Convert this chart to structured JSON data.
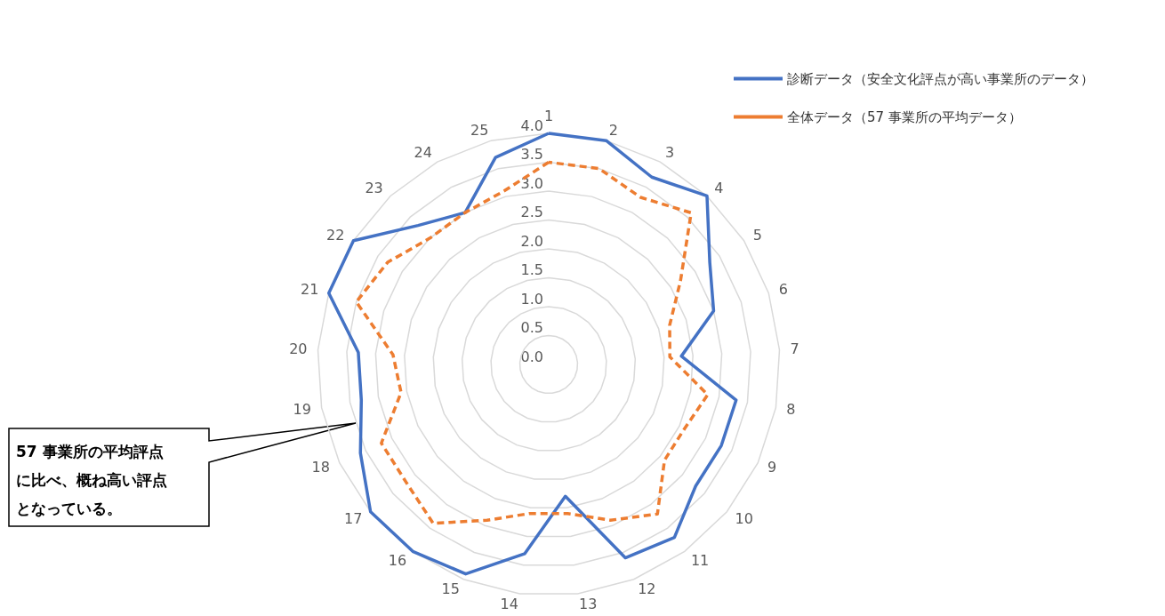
{
  "chart_data": {
    "type": "radar",
    "categories": [
      "1",
      "2",
      "3",
      "4",
      "5",
      "6",
      "7",
      "8",
      "9",
      "10",
      "11",
      "12",
      "13",
      "14",
      "15",
      "16",
      "17",
      "18",
      "19",
      "20",
      "21",
      "22",
      "23",
      "24",
      "25"
    ],
    "series": [
      {
        "name": "診断データ（安全文化評点が高い事業所のデータ）",
        "color": "#4472c4",
        "line_style": "solid",
        "values": [
          4.0,
          4.0,
          3.7,
          4.0,
          3.3,
          3.0,
          2.3,
          3.3,
          3.3,
          3.3,
          3.7,
          3.6,
          2.3,
          3.3,
          3.9,
          4.0,
          4.0,
          3.6,
          3.3,
          3.3,
          4.0,
          4.0,
          3.3,
          3.0,
          3.7
        ]
      },
      {
        "name": "全体データ（57 事業所の平均データ）",
        "color": "#ed7d31",
        "line_style": "dashed",
        "values": [
          3.5,
          3.5,
          3.3,
          3.6,
          2.7,
          2.2,
          2.1,
          2.8,
          2.6,
          2.6,
          3.2,
          2.9,
          2.6,
          2.6,
          2.9,
          3.4,
          3.2,
          3.2,
          2.6,
          2.7,
          3.5,
          3.3,
          3.0,
          3.0,
          3.1
        ]
      }
    ],
    "ylim": [
      0,
      4
    ],
    "yticks": [
      {
        "value": 0,
        "label": "0.0"
      },
      {
        "value": 0.5,
        "label": "0.5"
      },
      {
        "value": 1,
        "label": "1.0"
      },
      {
        "value": 1.5,
        "label": "1.5"
      },
      {
        "value": 2,
        "label": "2.0"
      },
      {
        "value": 2.5,
        "label": "2.5"
      },
      {
        "value": 3,
        "label": "3.0"
      },
      {
        "value": 3.5,
        "label": "3.5"
      },
      {
        "value": 4,
        "label": "4.0"
      }
    ],
    "grid": true,
    "legend": "top right",
    "marker": "none",
    "annotations": [
      "57 事業所の平均評点に比べ、概ね高い評点となっている。"
    ]
  }
}
